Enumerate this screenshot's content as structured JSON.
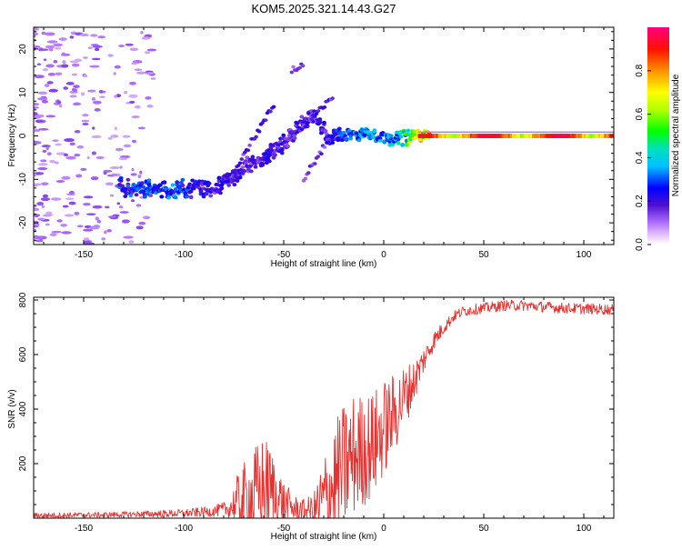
{
  "figure_title": "KOM5.2025.321.14.43.G27",
  "colors": {
    "snr_line": "#e8302e",
    "axis": "#000000",
    "background": "#ffffff"
  },
  "chart_data": [
    {
      "type": "heatmap",
      "title": "KOM5.2025.321.14.43.G27",
      "xlabel": "Height of straight line (km)",
      "ylabel": "Frequency (Hz)",
      "xlim": [
        -175,
        115
      ],
      "ylim": [
        -25,
        25
      ],
      "xticks": [
        -150,
        -100,
        -50,
        0,
        50,
        100
      ],
      "xtick_labels": [
        "-150",
        "-100",
        "-50",
        "0",
        "50",
        "100"
      ],
      "yticks": [
        -20,
        -10,
        0,
        10,
        20
      ],
      "ytick_labels": [
        "-20",
        "-10",
        "0",
        "10",
        "20"
      ],
      "colorbar": {
        "label": "Normalized spectral amplitude",
        "range": [
          0,
          1
        ],
        "ticks": [
          0.0,
          0.2,
          0.4,
          0.6,
          0.8
        ],
        "tick_labels": [
          "0.0",
          "0.2",
          "0.4",
          "0.6",
          "0.8"
        ]
      },
      "ridge": {
        "description_points_x": [
          -130,
          -110,
          -95,
          -85,
          -78,
          -65,
          -50,
          -42,
          -35,
          -28,
          -15,
          -8,
          0,
          10,
          20,
          50,
          100,
          115
        ],
        "description_points_y": [
          -12,
          -12.5,
          -12,
          -12,
          -10,
          -6,
          -2,
          2,
          5,
          0,
          0,
          0.5,
          -1,
          -0.5,
          0,
          0,
          0,
          0
        ],
        "description_points_amp": [
          0.25,
          0.3,
          0.25,
          0.2,
          0.2,
          0.18,
          0.2,
          0.2,
          0.18,
          0.2,
          0.3,
          0.35,
          0.3,
          0.4,
          0.8,
          0.85,
          0.9,
          0.9
        ]
      }
    },
    {
      "type": "line",
      "xlabel": "Height of straight line (km)",
      "ylabel": "SNR (v/v)",
      "xlim": [
        -175,
        115
      ],
      "ylim": [
        0,
        810
      ],
      "xticks": [
        -150,
        -100,
        -50,
        0,
        50,
        100
      ],
      "xtick_labels": [
        "-150",
        "-100",
        "-50",
        "0",
        "50",
        "100"
      ],
      "yticks": [
        200,
        400,
        600,
        800
      ],
      "ytick_labels": [
        "200",
        "400",
        "600",
        "800"
      ],
      "series": [
        {
          "name": "SNR",
          "envelope_x": [
            -175,
            -140,
            -120,
            -100,
            -85,
            -78,
            -72,
            -65,
            -60,
            -55,
            -50,
            -45,
            -40,
            -35,
            -30,
            -25,
            -20,
            -15,
            -10,
            -5,
            0,
            5,
            10,
            15,
            20,
            25,
            30,
            35,
            40,
            50,
            60,
            70,
            80,
            90,
            100,
            115
          ],
          "envelope_base": [
            10,
            12,
            15,
            18,
            25,
            35,
            60,
            80,
            110,
            90,
            50,
            35,
            30,
            30,
            60,
            120,
            180,
            230,
            250,
            270,
            330,
            380,
            440,
            500,
            580,
            650,
            700,
            740,
            760,
            770,
            780,
            780,
            775,
            770,
            768,
            765
          ],
          "envelope_amp": [
            10,
            10,
            12,
            15,
            20,
            30,
            120,
            180,
            200,
            160,
            90,
            50,
            40,
            60,
            180,
            230,
            240,
            230,
            210,
            200,
            180,
            150,
            120,
            80,
            50,
            35,
            25,
            20,
            20,
            20,
            20,
            20,
            20,
            20,
            20,
            20
          ]
        }
      ]
    }
  ]
}
